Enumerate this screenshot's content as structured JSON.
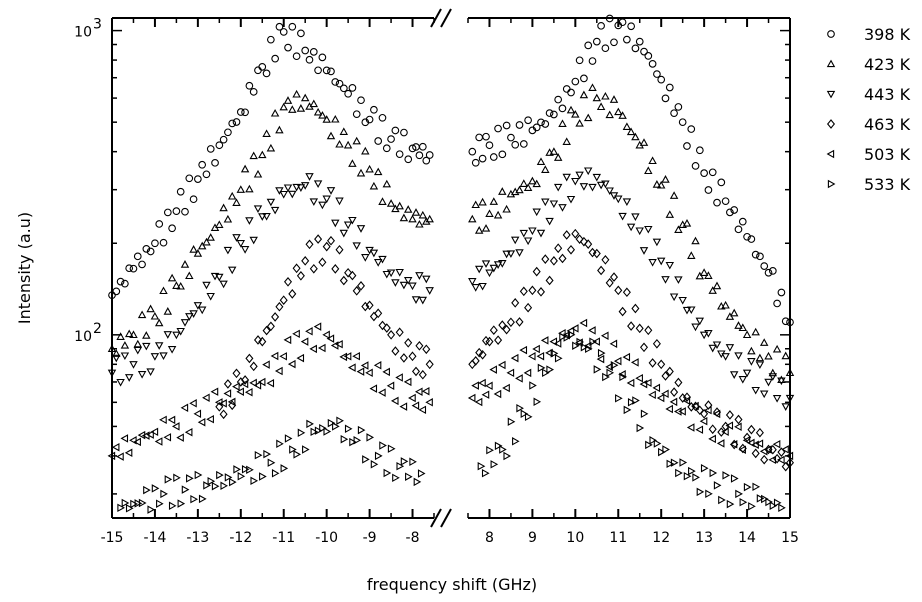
{
  "chart_data": {
    "type": "scatter",
    "title": "",
    "xlabel": "frequency shift (GHz)",
    "ylabel": "Intensity (a.u)",
    "y_scale": "log",
    "ylim": [
      25,
      1100
    ],
    "y_major_ticks": [
      {
        "value": 100,
        "label": "10",
        "exp": "2"
      },
      {
        "value": 1000,
        "label": "10",
        "exp": "3"
      }
    ],
    "x_axis_break": true,
    "x_segments": [
      {
        "xlim": [
          -15,
          -7.5
        ],
        "ticks": [
          -15,
          -14,
          -13,
          -12,
          -11,
          -10,
          -9,
          -8
        ]
      },
      {
        "xlim": [
          7.5,
          15
        ],
        "ticks": [
          8,
          9,
          10,
          11,
          12,
          13,
          14,
          15
        ]
      }
    ],
    "legend_position": "right",
    "grid": false,
    "series": [
      {
        "name": "398 K",
        "marker": "circle",
        "points": [
          [
            -15,
            135
          ],
          [
            -14.5,
            165
          ],
          [
            -14,
            200
          ],
          [
            -13.5,
            255
          ],
          [
            -13,
            325
          ],
          [
            -12.5,
            420
          ],
          [
            -12,
            540
          ],
          [
            -11.5,
            760
          ],
          [
            -11,
            990
          ],
          [
            -10.5,
            860
          ],
          [
            -10,
            740
          ],
          [
            -9.5,
            620
          ],
          [
            -9,
            510
          ],
          [
            -8.5,
            440
          ],
          [
            -8,
            410
          ],
          [
            -7.6,
            390
          ],
          [
            7.6,
            400
          ],
          [
            8,
            420
          ],
          [
            8.5,
            445
          ],
          [
            9,
            470
          ],
          [
            9.5,
            530
          ],
          [
            10,
            680
          ],
          [
            10.5,
            920
          ],
          [
            11,
            1040
          ],
          [
            11.5,
            920
          ],
          [
            12,
            690
          ],
          [
            12.5,
            500
          ],
          [
            13,
            340
          ],
          [
            13.5,
            275
          ],
          [
            14,
            210
          ],
          [
            14.5,
            160
          ],
          [
            15,
            110
          ]
        ]
      },
      {
        "name": "423 K",
        "marker": "triangle-up",
        "points": [
          [
            -15,
            90
          ],
          [
            -14.5,
            100
          ],
          [
            -14,
            115
          ],
          [
            -13.5,
            145
          ],
          [
            -13,
            185
          ],
          [
            -12.5,
            230
          ],
          [
            -12,
            300
          ],
          [
            -11.5,
            390
          ],
          [
            -11,
            560
          ],
          [
            -10.5,
            600
          ],
          [
            -10,
            510
          ],
          [
            -9.5,
            420
          ],
          [
            -9,
            350
          ],
          [
            -8.5,
            270
          ],
          [
            -8,
            240
          ],
          [
            -7.6,
            240
          ],
          [
            7.6,
            240
          ],
          [
            8,
            250
          ],
          [
            8.5,
            290
          ],
          [
            9,
            320
          ],
          [
            9.5,
            400
          ],
          [
            10,
            530
          ],
          [
            10.5,
            600
          ],
          [
            11,
            540
          ],
          [
            11.5,
            420
          ],
          [
            12,
            310
          ],
          [
            12.5,
            230
          ],
          [
            13,
            160
          ],
          [
            13.5,
            125
          ],
          [
            14,
            100
          ],
          [
            14.5,
            85
          ],
          [
            15,
            75
          ]
        ]
      },
      {
        "name": "443 K",
        "marker": "triangle-down",
        "points": [
          [
            -15,
            75
          ],
          [
            -14.5,
            80
          ],
          [
            -14,
            85
          ],
          [
            -13.5,
            100
          ],
          [
            -13,
            125
          ],
          [
            -12.5,
            155
          ],
          [
            -12,
            200
          ],
          [
            -11.5,
            245
          ],
          [
            -11,
            290
          ],
          [
            -10.5,
            310
          ],
          [
            -10,
            280
          ],
          [
            -9.5,
            230
          ],
          [
            -9,
            190
          ],
          [
            -8.5,
            160
          ],
          [
            -8,
            145
          ],
          [
            -7.6,
            140
          ],
          [
            7.6,
            150
          ],
          [
            8,
            160
          ],
          [
            8.5,
            185
          ],
          [
            9,
            220
          ],
          [
            9.5,
            270
          ],
          [
            10,
            320
          ],
          [
            10.5,
            330
          ],
          [
            11,
            280
          ],
          [
            11.5,
            220
          ],
          [
            12,
            175
          ],
          [
            12.5,
            130
          ],
          [
            13,
            100
          ],
          [
            13.5,
            85
          ],
          [
            14,
            75
          ],
          [
            14.5,
            70
          ],
          [
            15,
            62
          ]
        ]
      },
      {
        "name": "463 K",
        "marker": "diamond",
        "points": [
          [
            -12.5,
            58
          ],
          [
            -12,
            70
          ],
          [
            -11.5,
            95
          ],
          [
            -11,
            130
          ],
          [
            -10.5,
            175
          ],
          [
            -10,
            195
          ],
          [
            -9.5,
            160
          ],
          [
            -9,
            125
          ],
          [
            -8.5,
            100
          ],
          [
            -8,
            85
          ],
          [
            -7.6,
            80
          ],
          [
            7.6,
            80
          ],
          [
            8,
            95
          ],
          [
            8.5,
            110
          ],
          [
            9,
            140
          ],
          [
            9.5,
            175
          ],
          [
            10,
            215
          ],
          [
            10.5,
            185
          ],
          [
            11,
            140
          ],
          [
            11.5,
            105
          ],
          [
            12,
            80
          ],
          [
            12.5,
            62
          ],
          [
            13,
            55
          ],
          [
            13.5,
            50
          ],
          [
            14,
            46
          ],
          [
            14.5,
            42
          ],
          [
            15,
            38
          ]
        ]
      },
      {
        "name": "503 K",
        "marker": "triangle-left",
        "points": [
          [
            -15,
            40
          ],
          [
            -14.5,
            45
          ],
          [
            -14,
            48
          ],
          [
            -13.5,
            50
          ],
          [
            -13,
            55
          ],
          [
            -12.5,
            60
          ],
          [
            -12,
            65
          ],
          [
            -11.5,
            70
          ],
          [
            -11,
            85
          ],
          [
            -10.5,
            95
          ],
          [
            -10,
            100
          ],
          [
            -9.5,
            85
          ],
          [
            -9,
            75
          ],
          [
            -8.5,
            68
          ],
          [
            -8,
            62
          ],
          [
            -7.6,
            60
          ],
          [
            7.6,
            62
          ],
          [
            8,
            68
          ],
          [
            8.5,
            75
          ],
          [
            9,
            85
          ],
          [
            9.5,
            95
          ],
          [
            10,
            105
          ],
          [
            10.5,
            95
          ],
          [
            11,
            82
          ],
          [
            11.5,
            72
          ],
          [
            12,
            62
          ],
          [
            12.5,
            56
          ],
          [
            13,
            52
          ],
          [
            13.5,
            48
          ],
          [
            14,
            45
          ],
          [
            14.5,
            42
          ],
          [
            15,
            40
          ]
        ]
      },
      {
        "name": "533 K",
        "marker": "triangle-right",
        "points": [
          [
            -14.8,
            27
          ],
          [
            -14.3,
            28
          ],
          [
            -13.8,
            30
          ],
          [
            -13.3,
            31
          ],
          [
            -12.8,
            32
          ],
          [
            -12.3,
            34
          ],
          [
            -11.8,
            36
          ],
          [
            -11.3,
            38
          ],
          [
            -10.8,
            42
          ],
          [
            -10.3,
            48
          ],
          [
            -9.8,
            50
          ],
          [
            -9.3,
            45
          ],
          [
            -8.8,
            40
          ],
          [
            -8.3,
            37
          ],
          [
            -7.8,
            35
          ],
          [
            7.8,
            37
          ],
          [
            8.3,
            42
          ],
          [
            8.8,
            55
          ],
          [
            9.3,
            75
          ],
          [
            9.8,
            98
          ],
          [
            10.3,
            90
          ],
          [
            10.8,
            75
          ],
          [
            11.3,
            60
          ],
          [
            11.8,
            45
          ],
          [
            12.3,
            38
          ],
          [
            12.8,
            34
          ],
          [
            13.3,
            32
          ],
          [
            13.8,
            30
          ],
          [
            14.3,
            29
          ],
          [
            14.8,
            27
          ]
        ]
      }
    ]
  }
}
